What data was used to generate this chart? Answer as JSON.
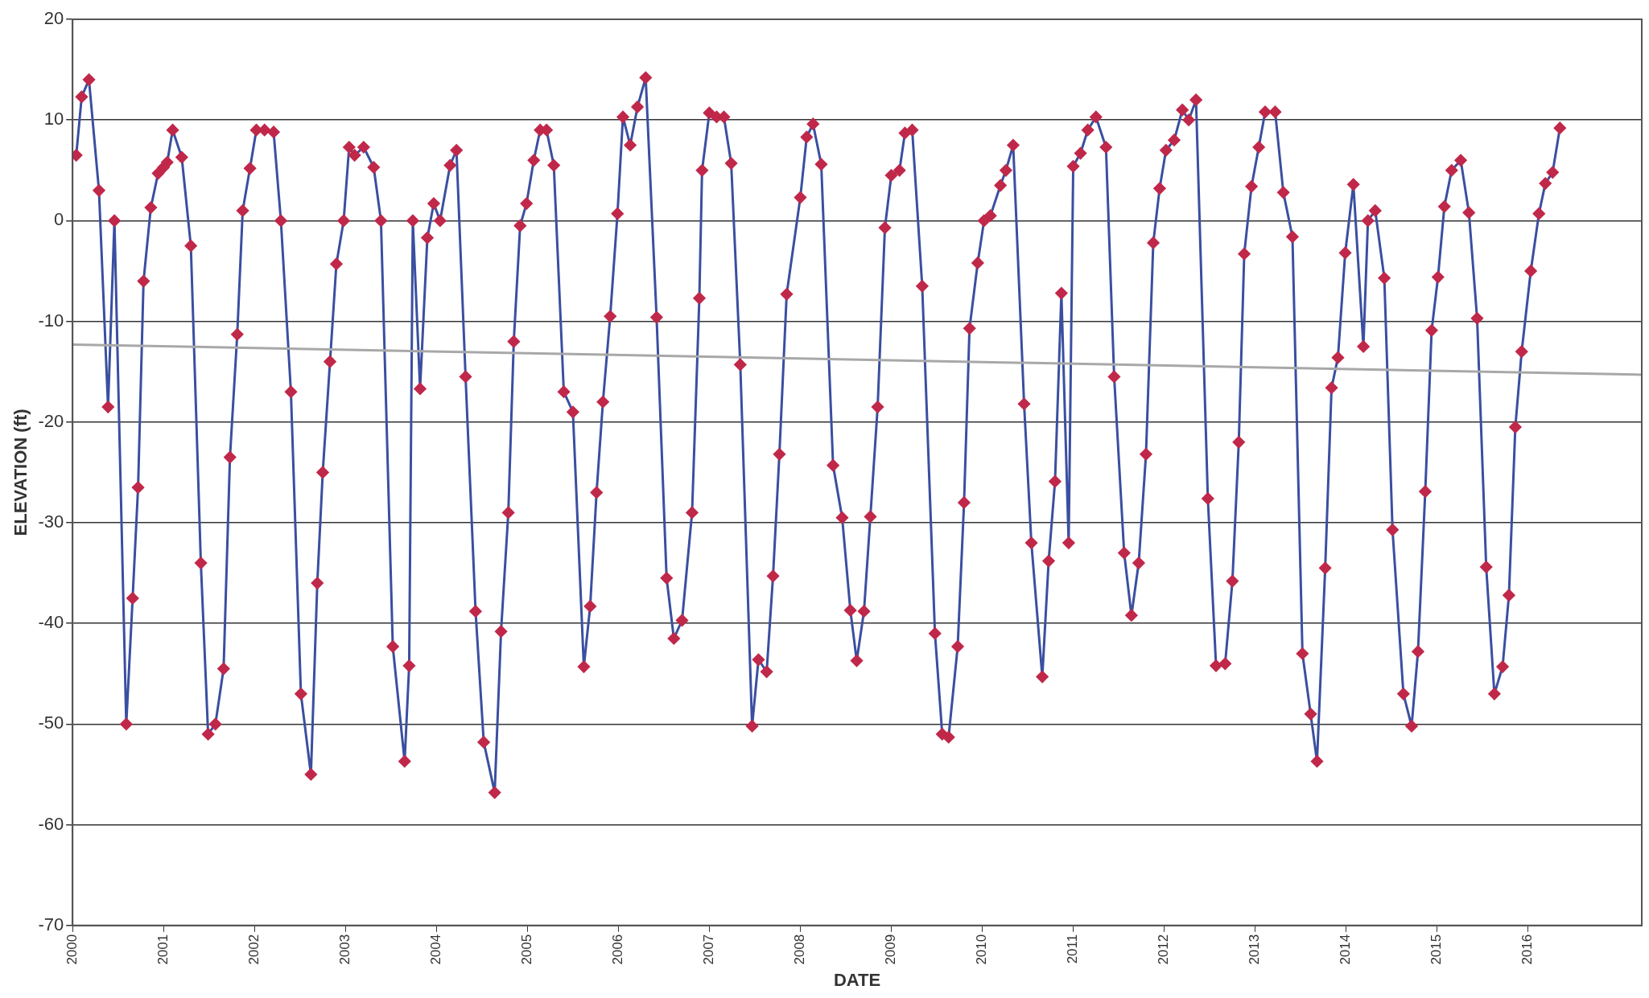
{
  "chart_data": {
    "type": "line",
    "xlabel": "DATE",
    "ylabel": "ELEVATION (ft)",
    "xlim": [
      2000,
      2017.25
    ],
    "xticks": [
      2000,
      2001,
      2002,
      2003,
      2004,
      2005,
      2006,
      2007,
      2008,
      2009,
      2010,
      2011,
      2012,
      2013,
      2014,
      2015,
      2016
    ],
    "ylim": [
      -70,
      20
    ],
    "yticks": [
      -70,
      -60,
      -50,
      -40,
      -30,
      -20,
      -10,
      0,
      10,
      20
    ],
    "grid": "y",
    "legend": false,
    "series": [
      {
        "color": "#3a4fa0",
        "marker": "diamond",
        "colors": [
          "#c0284a",
          "#c0284a",
          "#c0284a",
          "#c0284a",
          "#c0284a",
          "#c0284a",
          "#c0284a",
          "#c0284a",
          "#c0284a",
          "#c0284a",
          "#c0284a",
          "#c0284a",
          "#c0284a",
          "#c0284a",
          "#c0284a",
          "#c0284a",
          "#c0284a",
          "#c0284a",
          "#c0284a",
          "#c0284a",
          "#c0284a",
          "#c0284a",
          "#c0284a",
          "#c0284a",
          "#c0284a",
          "#c0284a",
          "#c0284a",
          "#c0284a",
          "#c0284a",
          "#c0284a",
          "#c0284a",
          "#c0284a",
          "#c0284a",
          "#c0284a",
          "#c0284a",
          "#c0284a",
          "#c0284a",
          "#c0284a",
          "#c0284a",
          "#c0284a",
          "#c0284a",
          "#c0284a",
          "#c0284a",
          "#c0284a",
          "#c0284a",
          "#c0284a",
          "#c0284a",
          "#c0284a",
          "#c0284a",
          "#c0284a",
          "#c0284a",
          "#c0284a",
          "#c0284a",
          "#c0284a",
          "#c0284a",
          "#c0284a",
          "#c0284a",
          "#c0284a",
          "#c0284a",
          "#c0284a",
          "#c0284a",
          "#c0284a",
          "#c0284a",
          "#c0284a",
          "#c0284a",
          "#c0284a",
          "#c0284a",
          "#c0284a",
          "#c0284a",
          "#c0284a",
          "#c0284a",
          "#c0284a",
          "#c0284a",
          "#c0284a",
          "#c0284a",
          "#c0284a",
          "#c0284a",
          "#c0284a",
          "#c0284a",
          "#c0284a",
          "#c0284a",
          "#c0284a",
          "#c0284a",
          "#c0284a",
          "#c0284a",
          "#c0284a",
          "#c0284a",
          "#c0284a",
          "#c0284a",
          "#c0284a",
          "#c0284a",
          "#c0284a",
          "#c0284a",
          "#c0284a",
          "#c0284a",
          "#c0284a",
          "#c0284a",
          "#c0284a",
          "#c0284a",
          "#c0284a",
          "#c0284a",
          "#c0284a",
          "#c0284a",
          "#c0284a",
          "#c0284a",
          "#c0284a",
          "#c0284a",
          "#c0284a",
          "#c0284a",
          "#c0284a",
          "#c0284a",
          "#c0284a",
          "#c0284a",
          "#c0284a",
          "#c0284a",
          "#c0284a",
          "#c0284a",
          "#c0284a",
          "#c0284a",
          "#c0284a",
          "#c0284a",
          "#c0284a",
          "#c0284a",
          "#c0284a",
          "#c0284a",
          "#c0284a",
          "#c0284a",
          "#c0284a",
          "#c0284a",
          "#c0284a",
          "#c0284a",
          "#c0284a",
          "#c0284a",
          "#c0284a",
          "#c0284a",
          "#c0284a",
          "#c0284a",
          "#c0284a",
          "#c0284a",
          "#c0284a",
          "#c0284a",
          "#c0284a",
          "#c0284a",
          "#c0284a",
          "#c0284a",
          "#c0284a",
          "#c0284a",
          "#c0284a",
          "#c0284a",
          "#c0284a",
          "#c0284a",
          "#c0284a",
          "#c0284a",
          "#c0284a",
          "#c0284a",
          "#c0284a",
          "#c0284a",
          "#c0284a",
          "#c0284a",
          "#c0284a",
          "#c0284a",
          "#c0284a",
          "#c0284a",
          "#c0284a",
          "#c0284a",
          "#c0284a",
          "#c0284a",
          "#c0284a",
          "#c0284a",
          "#c0284a",
          "#c0284a",
          "#c0284a",
          "#c0284a",
          "#c0284a",
          "#c0284a",
          "#c0284a",
          "#c0284a",
          "#c0284a",
          "#c0284a",
          "#c0284a",
          "#c0284a",
          "#c0284a",
          "#c0284a",
          "#c0284a",
          "#c0284a",
          "#c0284a",
          "#c0284a",
          "#c0284a",
          "#c0284a",
          "#c0284a",
          "#c0284a",
          "#c0284a",
          "#c0284a",
          "#c0284a",
          "#c0284a"
        ],
        "x": [
          2000.04,
          2000.1,
          2000.18,
          2000.29,
          2000.39,
          2000.46,
          2000.59,
          2000.66,
          2000.72,
          2000.78,
          2000.86,
          2000.94,
          2001.0,
          2001.04,
          2001.1,
          2001.2,
          2001.3,
          2001.41,
          2001.49,
          2001.57,
          2001.66,
          2001.73,
          2001.81,
          2001.87,
          2001.95,
          2002.02,
          2002.11,
          2002.21,
          2002.29,
          2002.4,
          2002.51,
          2002.62,
          2002.69,
          2002.75,
          2002.83,
          2002.9,
          2002.98,
          2003.04,
          2003.1,
          2003.2,
          2003.31,
          2003.39,
          2003.52,
          2003.65,
          2003.7,
          2003.74,
          2003.82,
          2003.9,
          2003.97,
          2004.04,
          2004.15,
          2004.22,
          2004.32,
          2004.43,
          2004.52,
          2004.64,
          2004.71,
          2004.79,
          2004.85,
          2004.92,
          2004.99,
          2005.07,
          2005.14,
          2005.21,
          2005.29,
          2005.4,
          2005.5,
          2005.62,
          2005.69,
          2005.76,
          2005.83,
          2005.91,
          2005.99,
          2006.05,
          2006.13,
          2006.21,
          2006.3,
          2006.42,
          2006.53,
          2006.61,
          2006.7,
          2006.81,
          2006.89,
          2006.92,
          2007.0,
          2007.08,
          2007.16,
          2007.24,
          2007.34,
          2007.47,
          2007.54,
          2007.63,
          2007.7,
          2007.77,
          2007.85,
          2008.0,
          2008.07,
          2008.14,
          2008.23,
          2008.36,
          2008.46,
          2008.55,
          2008.62,
          2008.7,
          2008.77,
          2008.85,
          2008.93,
          2009.0,
          2009.09,
          2009.15,
          2009.23,
          2009.34,
          2009.48,
          2009.56,
          2009.63,
          2009.73,
          2009.8,
          2009.86,
          2009.95,
          2010.02,
          2010.09,
          2010.2,
          2010.26,
          2010.34,
          2010.46,
          2010.54,
          2010.66,
          2010.73,
          2010.8,
          2010.87,
          2010.95,
          2011.0,
          2011.08,
          2011.16,
          2011.25,
          2011.36,
          2011.45,
          2011.56,
          2011.64,
          2011.72,
          2011.8,
          2011.88,
          2011.95,
          2012.02,
          2012.11,
          2012.2,
          2012.27,
          2012.35,
          2012.48,
          2012.57,
          2012.67,
          2012.75,
          2012.82,
          2012.88,
          2012.96,
          2013.04,
          2013.11,
          2013.22,
          2013.31,
          2013.41,
          2013.52,
          2013.61,
          2013.68,
          2013.77,
          2013.84,
          2013.91,
          2013.99,
          2014.08,
          2014.19,
          2014.24,
          2014.32,
          2014.42,
          2014.51,
          2014.63,
          2014.72,
          2014.79,
          2014.87,
          2014.94,
          2015.01,
          2015.08,
          2015.16,
          2015.26,
          2015.35,
          2015.44,
          2015.54,
          2015.63,
          2015.72,
          2015.79,
          2015.86,
          2015.93,
          2016.03,
          2016.12,
          2016.19,
          2016.27,
          2016.35
        ],
        "values": [
          6.5,
          12.3,
          14,
          3,
          -18.5,
          0,
          -50,
          -37.5,
          -26.5,
          -6,
          1.3,
          4.7,
          5.3,
          5.8,
          9,
          6.3,
          -2.5,
          -34,
          -51,
          -50,
          -44.5,
          -23.5,
          -11.3,
          1,
          5.2,
          9,
          9,
          8.8,
          0,
          -17,
          -47,
          -55,
          -36,
          -25,
          -14,
          -4.3,
          0,
          7.3,
          6.5,
          7.3,
          5.3,
          0,
          -42.3,
          -53.7,
          -44.2,
          0,
          -16.7,
          -1.7,
          1.7,
          0,
          5.5,
          7,
          -15.5,
          -38.8,
          -51.8,
          -56.8,
          -40.8,
          -29,
          -12,
          -0.5,
          1.7,
          6,
          9,
          9,
          5.5,
          -17,
          -19,
          -44.3,
          -38.3,
          -27,
          -18,
          -9.5,
          0.7,
          10.3,
          7.5,
          11.3,
          14.2,
          -9.6,
          -35.5,
          -41.5,
          -39.7,
          -29,
          -7.7,
          5,
          10.7,
          10.3,
          10.3,
          5.7,
          -14.3,
          -50.2,
          -43.6,
          -44.8,
          -35.3,
          -23.2,
          -7.3,
          2.3,
          8.3,
          9.6,
          5.6,
          -24.3,
          -29.5,
          -38.7,
          -43.7,
          -38.8,
          -29.4,
          -18.5,
          -0.7,
          4.5,
          5,
          8.7,
          9,
          -6.5,
          -41,
          -51,
          -51.3,
          -42.3,
          -28,
          -10.7,
          -4.2,
          0,
          0.5,
          3.5,
          5,
          7.5,
          -18.2,
          -32,
          -45.3,
          -33.8,
          -25.9,
          -7.2,
          -32,
          5.4,
          6.7,
          9,
          10.3,
          7.3,
          -15.5,
          -33,
          -39.2,
          -34,
          -23.2,
          -2.2,
          3.2,
          7,
          8,
          11,
          10,
          12,
          -27.6,
          -44.2,
          -44,
          -35.8,
          -22,
          -3.3,
          3.4,
          7.3,
          10.8,
          10.8,
          2.8,
          -1.6,
          -43,
          -49,
          -53.7,
          -34.5,
          -16.6,
          -13.6,
          -3.2,
          3.6,
          -12.5,
          0,
          1,
          -5.7,
          -30.7,
          -47,
          -50.2,
          -42.8,
          -26.9,
          -10.9,
          -5.6,
          1.4,
          5,
          6,
          0.8,
          -9.7,
          -34.4,
          -47,
          -44.3,
          -37.2,
          -20.5,
          -13,
          -5,
          0.7,
          3.7,
          4.8,
          9.2
        ]
      },
      {
        "color": "#a8a8a8",
        "marker": "none",
        "x": [
          2000,
          2017.25
        ],
        "values": [
          -12.3,
          -15.3
        ]
      }
    ]
  }
}
